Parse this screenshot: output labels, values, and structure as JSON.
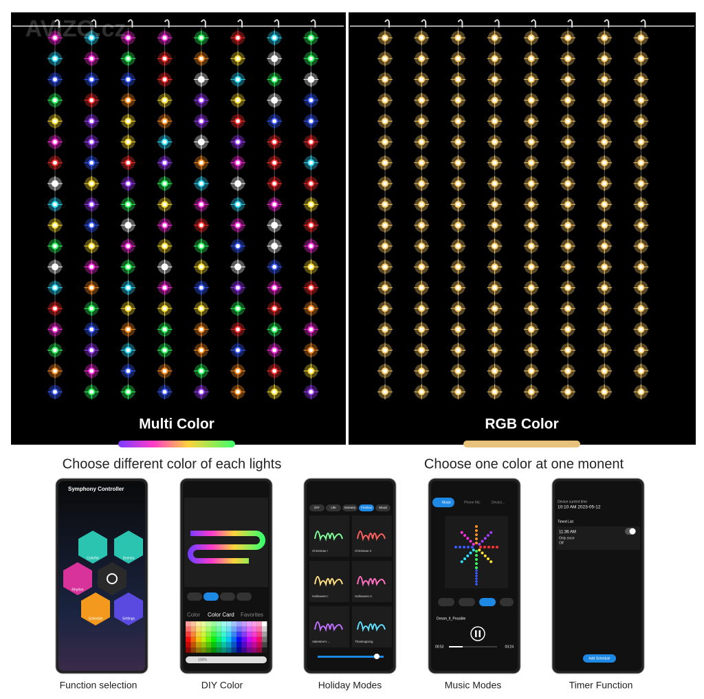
{
  "watermark": "AVIZO.cz",
  "panels": [
    {
      "label": "Multi Color"
    },
    {
      "label": "RGB Color"
    }
  ],
  "captions": [
    "Choose different color of each lights",
    "Choose one color at one monent"
  ],
  "phones": [
    {
      "label": "Function selection",
      "title": "Symphony Controller",
      "buttons": [
        "Colorful",
        "Scenes",
        "Rhythm",
        "Schedule",
        "Settings"
      ]
    },
    {
      "label": "DIY Color",
      "tabs": [
        "Color",
        "Color Card",
        "Favorites"
      ],
      "brightness": "100%"
    },
    {
      "label": "Holiday Modes",
      "tabs": [
        "DIY",
        "Life",
        "Scenery",
        "Festival",
        "Mood"
      ],
      "items": [
        "Christmas I",
        "Christmas II",
        "Halloween I",
        "Halloween II",
        "Valentine's ...",
        "Thanksgiving"
      ]
    },
    {
      "label": "Music Modes",
      "tabs": [
        "Music",
        "Phone Mic",
        "Device..."
      ],
      "song": "Dream_It_Possible",
      "elapsed": "00:52",
      "duration": "03:24"
    },
    {
      "label": "Timer Function",
      "current_label": "Device current time",
      "current_time": "10:10 AM 2023-05-12",
      "list_title": "Timed List",
      "timer_time": "11:36 AM",
      "timer_repeat": "Only once",
      "timer_action": "Off",
      "button": "Add Schedule"
    }
  ]
}
